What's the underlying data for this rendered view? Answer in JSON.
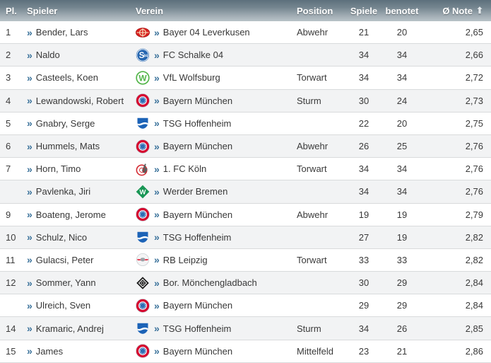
{
  "header": {
    "columns": [
      "Pl.",
      "Spieler",
      "Verein",
      "Position",
      "Spiele",
      "benotet",
      "Ø Note"
    ],
    "sort_icon": "⬆"
  },
  "icons": {
    "chevron": "»"
  },
  "colors": {
    "header_gradient_top": "#5d707c",
    "header_gradient_bottom": "#b9c3c8",
    "header_text": "#ffffff",
    "row_alt_background": "#f2f3f4",
    "row_border": "#d9dbdc",
    "chevron_blue": "#39719a",
    "body_text": "#383838"
  },
  "table": {
    "rows": [
      {
        "rank": "1",
        "player": "Bender, Lars",
        "club": "Bayer 04 Leverkusen",
        "logo": "bayer-leverkusen",
        "position": "Abwehr",
        "spiele": "21",
        "benotet": "20",
        "note": "2,65"
      },
      {
        "rank": "2",
        "player": "Naldo",
        "club": "FC Schalke 04",
        "logo": "schalke-04",
        "position": "",
        "spiele": "34",
        "benotet": "34",
        "note": "2,66"
      },
      {
        "rank": "3",
        "player": "Casteels, Koen",
        "club": "VfL Wolfsburg",
        "logo": "vfl-wolfsburg",
        "position": "Torwart",
        "spiele": "34",
        "benotet": "34",
        "note": "2,72"
      },
      {
        "rank": "4",
        "player": "Lewandowski, Robert",
        "club": "Bayern München",
        "logo": "bayern-muenchen",
        "position": "Sturm",
        "spiele": "30",
        "benotet": "24",
        "note": "2,73"
      },
      {
        "rank": "5",
        "player": "Gnabry, Serge",
        "club": "TSG Hoffenheim",
        "logo": "tsg-hoffenheim",
        "position": "",
        "spiele": "22",
        "benotet": "20",
        "note": "2,75"
      },
      {
        "rank": "6",
        "player": "Hummels, Mats",
        "club": "Bayern München",
        "logo": "bayern-muenchen",
        "position": "Abwehr",
        "spiele": "26",
        "benotet": "25",
        "note": "2,76"
      },
      {
        "rank": "7",
        "player": "Horn, Timo",
        "club": "1. FC Köln",
        "logo": "fc-koeln",
        "position": "Torwart",
        "spiele": "34",
        "benotet": "34",
        "note": "2,76"
      },
      {
        "rank": "",
        "player": "Pavlenka, Jiri",
        "club": "Werder Bremen",
        "logo": "werder-bremen",
        "position": "",
        "spiele": "34",
        "benotet": "34",
        "note": "2,76"
      },
      {
        "rank": "9",
        "player": "Boateng, Jerome",
        "club": "Bayern München",
        "logo": "bayern-muenchen",
        "position": "Abwehr",
        "spiele": "19",
        "benotet": "19",
        "note": "2,79"
      },
      {
        "rank": "10",
        "player": "Schulz, Nico",
        "club": "TSG Hoffenheim",
        "logo": "tsg-hoffenheim",
        "position": "",
        "spiele": "27",
        "benotet": "19",
        "note": "2,82"
      },
      {
        "rank": "11",
        "player": "Gulacsi, Peter",
        "club": "RB Leipzig",
        "logo": "rb-leipzig",
        "position": "Torwart",
        "spiele": "33",
        "benotet": "33",
        "note": "2,82"
      },
      {
        "rank": "12",
        "player": "Sommer, Yann",
        "club": "Bor. Mönchengladbach",
        "logo": "moenchengladbach",
        "position": "",
        "spiele": "30",
        "benotet": "29",
        "note": "2,84"
      },
      {
        "rank": "",
        "player": "Ulreich, Sven",
        "club": "Bayern München",
        "logo": "bayern-muenchen",
        "position": "",
        "spiele": "29",
        "benotet": "29",
        "note": "2,84"
      },
      {
        "rank": "14",
        "player": "Kramaric, Andrej",
        "club": "TSG Hoffenheim",
        "logo": "tsg-hoffenheim",
        "position": "Sturm",
        "spiele": "34",
        "benotet": "26",
        "note": "2,85"
      },
      {
        "rank": "15",
        "player": "James",
        "club": "Bayern München",
        "logo": "bayern-muenchen",
        "position": "Mittelfeld",
        "spiele": "23",
        "benotet": "21",
        "note": "2,86"
      }
    ]
  }
}
